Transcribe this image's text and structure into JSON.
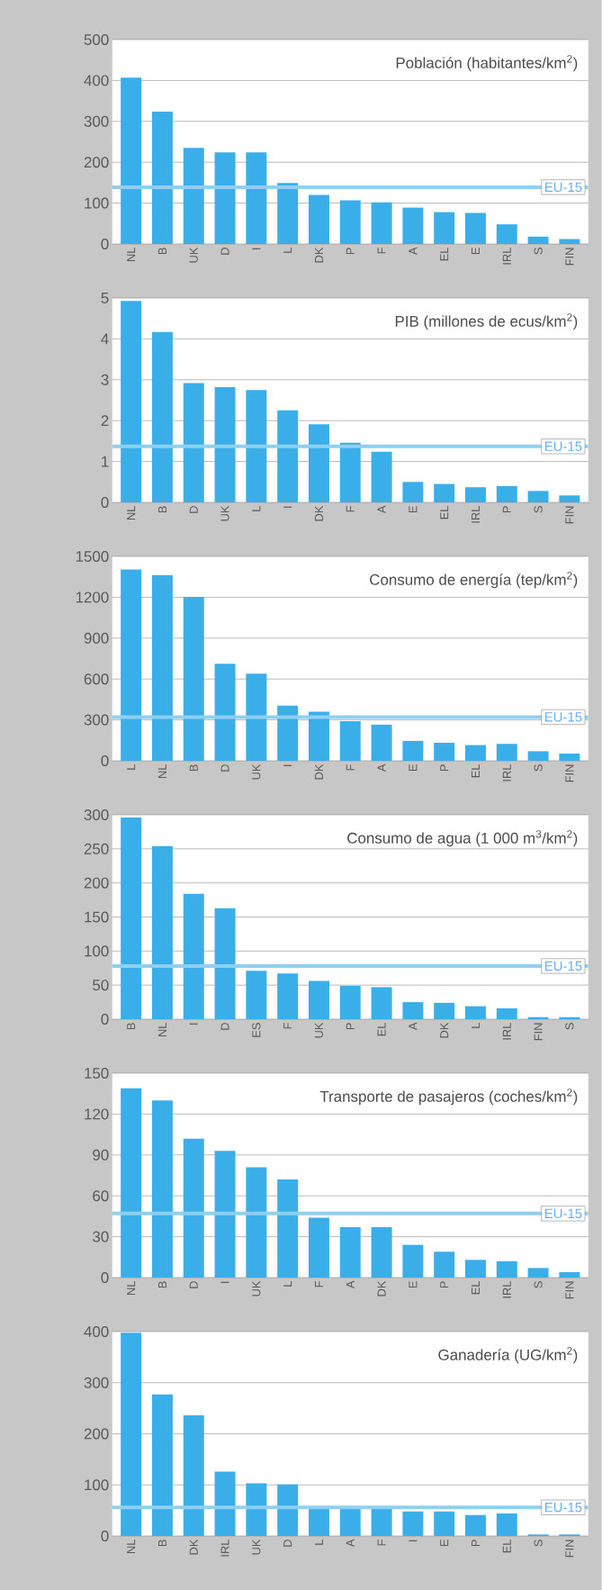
{
  "chart_data": [
    {
      "type": "bar",
      "title": "Población (habitantes/km$^{2}$)",
      "categories": [
        "NL",
        "B",
        "UK",
        "D",
        "I",
        "L",
        "DK",
        "P",
        "F",
        "A",
        "EL",
        "E",
        "IRL",
        "S",
        "FIN"
      ],
      "values": [
        407,
        324,
        235,
        224,
        224,
        149,
        120,
        107,
        102,
        89,
        78,
        76,
        48,
        18,
        12
      ],
      "color": "#3aaee8",
      "ylim": [
        0,
        500
      ],
      "yticks": [
        0,
        100,
        200,
        300,
        400,
        500
      ],
      "grid": "y",
      "ref_lines": [
        {
          "axis": "y",
          "value": 139,
          "label": "EU-15",
          "color": "#8fd0f0"
        }
      ]
    },
    {
      "type": "bar",
      "title": "PIB (millones de ecus/km$^{2}$)",
      "categories": [
        "NL",
        "B",
        "D",
        "UK",
        "L",
        "I",
        "DK",
        "F",
        "A",
        "E",
        "EL",
        "IRL",
        "P",
        "S",
        "FIN"
      ],
      "values": [
        4.93,
        4.17,
        2.92,
        2.82,
        2.75,
        2.25,
        1.91,
        1.46,
        1.24,
        0.5,
        0.45,
        0.37,
        0.4,
        0.28,
        0.17
      ],
      "color": "#3aaee8",
      "ylim": [
        0,
        5
      ],
      "yticks": [
        0,
        1,
        2,
        3,
        4,
        5
      ],
      "grid": "y",
      "ref_lines": [
        {
          "axis": "y",
          "value": 1.37,
          "label": "EU-15",
          "color": "#8fd0f0"
        }
      ]
    },
    {
      "type": "bar",
      "title": "Consumo de energía (tep/km$^{2}$)",
      "categories": [
        "L",
        "NL",
        "B",
        "D",
        "UK",
        "I",
        "DK",
        "F",
        "A",
        "E",
        "P",
        "EL",
        "IRL",
        "S",
        "FIN"
      ],
      "values": [
        1404,
        1362,
        1202,
        712,
        639,
        405,
        360,
        290,
        265,
        146,
        132,
        115,
        124,
        70,
        53
      ],
      "color": "#3aaee8",
      "ylim": [
        0,
        1500
      ],
      "yticks": [
        0,
        300,
        600,
        900,
        1200,
        1500
      ],
      "grid": "y",
      "ref_lines": [
        {
          "axis": "y",
          "value": 321,
          "label": "EU-15",
          "color": "#8fd0f0"
        }
      ]
    },
    {
      "type": "bar",
      "title": "Consumo de agua (1 000 m$^{3}$/km$^{2}$)",
      "categories": [
        "B",
        "NL",
        "I",
        "D",
        "ES",
        "F",
        "UK",
        "P",
        "EL",
        "A",
        "DK",
        "L",
        "IRL",
        "FIN",
        "S"
      ],
      "values": [
        296,
        254,
        184,
        163,
        71,
        67,
        56,
        49,
        47,
        25,
        24,
        19,
        16,
        3,
        3
      ],
      "color": "#3aaee8",
      "ylim": [
        0,
        300
      ],
      "yticks": [
        0,
        50,
        100,
        150,
        200,
        250,
        300
      ],
      "grid": "y",
      "ref_lines": [
        {
          "axis": "y",
          "value": 78,
          "label": "EU-15",
          "color": "#8fd0f0"
        }
      ]
    },
    {
      "type": "bar",
      "title": "Transporte de pasajeros (coches/km$^{2}$)",
      "categories": [
        "NL",
        "B",
        "D",
        "I",
        "UK",
        "L",
        "F",
        "A",
        "DK",
        "E",
        "P",
        "EL",
        "IRL",
        "S",
        "FIN"
      ],
      "values": [
        139,
        130,
        102,
        93,
        81,
        72,
        44,
        37,
        37,
        24,
        19,
        13,
        12,
        7,
        4
      ],
      "color": "#3aaee8",
      "ylim": [
        0,
        150
      ],
      "yticks": [
        0,
        30,
        60,
        90,
        120,
        150
      ],
      "grid": "y",
      "ref_lines": [
        {
          "axis": "y",
          "value": 47,
          "label": "EU-15",
          "color": "#8fd0f0"
        }
      ]
    },
    {
      "type": "bar",
      "title": "Ganadería (UG/km$^{2}$)",
      "categories": [
        "NL",
        "B",
        "DK",
        "IRL",
        "UK",
        "D",
        "L",
        "A",
        "F",
        "I",
        "E",
        "P",
        "EL",
        "S",
        "FIN"
      ],
      "values": [
        398,
        277,
        236,
        126,
        103,
        101,
        55,
        54,
        54,
        48,
        48,
        41,
        44,
        3,
        3
      ],
      "color": "#3aaee8",
      "ylim": [
        0,
        400
      ],
      "yticks": [
        0,
        100,
        200,
        300,
        400
      ],
      "grid": "y",
      "ref_lines": [
        {
          "axis": "y",
          "value": 56,
          "label": "EU-15",
          "color": "#8fd0f0"
        }
      ]
    }
  ]
}
